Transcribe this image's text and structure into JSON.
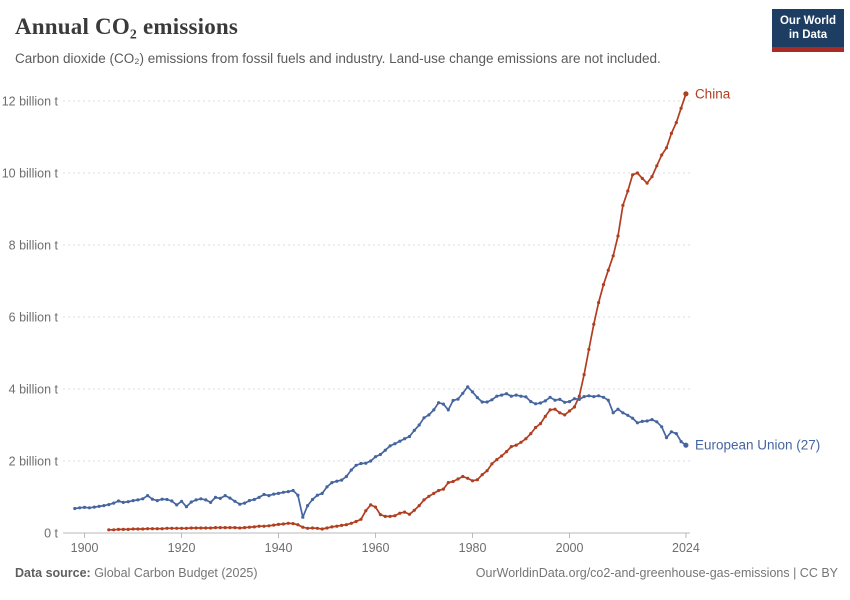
{
  "header": {
    "title": "Annual CO₂ emissions",
    "subtitle": "Carbon dioxide (CO₂) emissions from fossil fuels and industry. Land-use change emissions are not included.",
    "logo_line1": "Our World",
    "logo_line2": "in Data"
  },
  "footer": {
    "source_label": "Data source:",
    "source_value": " Global Carbon Budget (2025)",
    "link": "OurWorldinData.org/co2-and-greenhouse-gas-emissions | CC BY"
  },
  "colors": {
    "china": "#b13e20",
    "european_union": "#4665a0",
    "grid": "#dcdcdc",
    "axis": "#b8b8b8",
    "tick_text": "#6e6e6e",
    "logo_navy": "#1d3d63",
    "logo_red": "#aa2a26"
  },
  "chart_data": {
    "type": "line",
    "title": "Annual CO₂ emissions",
    "xlabel": "",
    "ylabel": "",
    "unit": "billion t",
    "grid": "horizontal-dashed",
    "legend_position": "end-of-line-labels",
    "x_domain": [
      1897,
      2025.5
    ],
    "y_domain": [
      0,
      12.4
    ],
    "x_ticks": [
      1900,
      1920,
      1940,
      1960,
      1980,
      2000,
      2024
    ],
    "y_ticks": [
      {
        "value": 0,
        "label": "0 t"
      },
      {
        "value": 2,
        "label": "2 billion t"
      },
      {
        "value": 4,
        "label": "4 billion t"
      },
      {
        "value": 6,
        "label": "6 billion t"
      },
      {
        "value": 8,
        "label": "8 billion t"
      },
      {
        "value": 10,
        "label": "10 billion t"
      },
      {
        "value": 12,
        "label": "12 billion t"
      }
    ],
    "series": [
      {
        "name": "China",
        "color": "#b13e20",
        "points": [
          [
            1905,
            0.09
          ],
          [
            1906,
            0.09
          ],
          [
            1907,
            0.1
          ],
          [
            1908,
            0.1
          ],
          [
            1909,
            0.1
          ],
          [
            1910,
            0.11
          ],
          [
            1911,
            0.11
          ],
          [
            1912,
            0.11
          ],
          [
            1913,
            0.12
          ],
          [
            1914,
            0.12
          ],
          [
            1915,
            0.12
          ],
          [
            1916,
            0.12
          ],
          [
            1917,
            0.13
          ],
          [
            1918,
            0.13
          ],
          [
            1919,
            0.13
          ],
          [
            1920,
            0.13
          ],
          [
            1921,
            0.13
          ],
          [
            1922,
            0.14
          ],
          [
            1923,
            0.14
          ],
          [
            1924,
            0.14
          ],
          [
            1925,
            0.14
          ],
          [
            1926,
            0.14
          ],
          [
            1927,
            0.15
          ],
          [
            1928,
            0.15
          ],
          [
            1929,
            0.15
          ],
          [
            1930,
            0.15
          ],
          [
            1931,
            0.15
          ],
          [
            1932,
            0.14
          ],
          [
            1933,
            0.15
          ],
          [
            1934,
            0.16
          ],
          [
            1935,
            0.17
          ],
          [
            1936,
            0.19
          ],
          [
            1937,
            0.19
          ],
          [
            1938,
            0.2
          ],
          [
            1939,
            0.22
          ],
          [
            1940,
            0.24
          ],
          [
            1941,
            0.25
          ],
          [
            1942,
            0.27
          ],
          [
            1943,
            0.26
          ],
          [
            1944,
            0.23
          ],
          [
            1945,
            0.16
          ],
          [
            1946,
            0.13
          ],
          [
            1947,
            0.14
          ],
          [
            1948,
            0.13
          ],
          [
            1949,
            0.11
          ],
          [
            1950,
            0.14
          ],
          [
            1951,
            0.17
          ],
          [
            1952,
            0.19
          ],
          [
            1953,
            0.21
          ],
          [
            1954,
            0.23
          ],
          [
            1955,
            0.27
          ],
          [
            1956,
            0.32
          ],
          [
            1957,
            0.38
          ],
          [
            1958,
            0.62
          ],
          [
            1959,
            0.78
          ],
          [
            1960,
            0.72
          ],
          [
            1961,
            0.51
          ],
          [
            1962,
            0.46
          ],
          [
            1963,
            0.46
          ],
          [
            1964,
            0.48
          ],
          [
            1965,
            0.55
          ],
          [
            1966,
            0.58
          ],
          [
            1967,
            0.52
          ],
          [
            1968,
            0.63
          ],
          [
            1969,
            0.76
          ],
          [
            1970,
            0.92
          ],
          [
            1971,
            1.02
          ],
          [
            1972,
            1.1
          ],
          [
            1973,
            1.18
          ],
          [
            1974,
            1.22
          ],
          [
            1975,
            1.4
          ],
          [
            1976,
            1.43
          ],
          [
            1977,
            1.5
          ],
          [
            1978,
            1.57
          ],
          [
            1979,
            1.52
          ],
          [
            1980,
            1.45
          ],
          [
            1981,
            1.48
          ],
          [
            1982,
            1.62
          ],
          [
            1983,
            1.73
          ],
          [
            1984,
            1.92
          ],
          [
            1985,
            2.04
          ],
          [
            1986,
            2.14
          ],
          [
            1987,
            2.26
          ],
          [
            1988,
            2.4
          ],
          [
            1989,
            2.44
          ],
          [
            1990,
            2.52
          ],
          [
            1991,
            2.62
          ],
          [
            1992,
            2.76
          ],
          [
            1993,
            2.93
          ],
          [
            1994,
            3.04
          ],
          [
            1995,
            3.24
          ],
          [
            1996,
            3.42
          ],
          [
            1997,
            3.44
          ],
          [
            1998,
            3.34
          ],
          [
            1999,
            3.28
          ],
          [
            2000,
            3.39
          ],
          [
            2001,
            3.5
          ],
          [
            2002,
            3.8
          ],
          [
            2003,
            4.4
          ],
          [
            2004,
            5.1
          ],
          [
            2005,
            5.8
          ],
          [
            2006,
            6.4
          ],
          [
            2007,
            6.9
          ],
          [
            2008,
            7.3
          ],
          [
            2009,
            7.7
          ],
          [
            2010,
            8.25
          ],
          [
            2011,
            9.1
          ],
          [
            2012,
            9.5
          ],
          [
            2013,
            9.95
          ],
          [
            2014,
            10.0
          ],
          [
            2015,
            9.85
          ],
          [
            2016,
            9.72
          ],
          [
            2017,
            9.9
          ],
          [
            2018,
            10.2
          ],
          [
            2019,
            10.5
          ],
          [
            2020,
            10.7
          ],
          [
            2021,
            11.1
          ],
          [
            2022,
            11.4
          ],
          [
            2023,
            11.8
          ],
          [
            2024,
            12.2
          ]
        ]
      },
      {
        "name": "European Union (27)",
        "color": "#4665a0",
        "points": [
          [
            1898,
            0.68
          ],
          [
            1899,
            0.7
          ],
          [
            1900,
            0.71
          ],
          [
            1901,
            0.7
          ],
          [
            1902,
            0.72
          ],
          [
            1903,
            0.74
          ],
          [
            1904,
            0.76
          ],
          [
            1905,
            0.79
          ],
          [
            1906,
            0.83
          ],
          [
            1907,
            0.89
          ],
          [
            1908,
            0.85
          ],
          [
            1909,
            0.87
          ],
          [
            1910,
            0.9
          ],
          [
            1911,
            0.92
          ],
          [
            1912,
            0.95
          ],
          [
            1913,
            1.04
          ],
          [
            1914,
            0.94
          ],
          [
            1915,
            0.9
          ],
          [
            1916,
            0.94
          ],
          [
            1917,
            0.93
          ],
          [
            1918,
            0.89
          ],
          [
            1919,
            0.78
          ],
          [
            1920,
            0.88
          ],
          [
            1921,
            0.73
          ],
          [
            1922,
            0.86
          ],
          [
            1923,
            0.92
          ],
          [
            1924,
            0.95
          ],
          [
            1925,
            0.92
          ],
          [
            1926,
            0.85
          ],
          [
            1927,
            0.99
          ],
          [
            1928,
            0.96
          ],
          [
            1929,
            1.04
          ],
          [
            1930,
            0.97
          ],
          [
            1931,
            0.88
          ],
          [
            1932,
            0.8
          ],
          [
            1933,
            0.83
          ],
          [
            1934,
            0.9
          ],
          [
            1935,
            0.93
          ],
          [
            1936,
            0.99
          ],
          [
            1937,
            1.07
          ],
          [
            1938,
            1.04
          ],
          [
            1939,
            1.08
          ],
          [
            1940,
            1.1
          ],
          [
            1941,
            1.13
          ],
          [
            1942,
            1.15
          ],
          [
            1943,
            1.18
          ],
          [
            1944,
            1.05
          ],
          [
            1945,
            0.44
          ],
          [
            1946,
            0.76
          ],
          [
            1947,
            0.93
          ],
          [
            1948,
            1.05
          ],
          [
            1949,
            1.1
          ],
          [
            1950,
            1.28
          ],
          [
            1951,
            1.4
          ],
          [
            1952,
            1.44
          ],
          [
            1953,
            1.47
          ],
          [
            1954,
            1.57
          ],
          [
            1955,
            1.75
          ],
          [
            1956,
            1.88
          ],
          [
            1957,
            1.93
          ],
          [
            1958,
            1.94
          ],
          [
            1959,
            2.0
          ],
          [
            1960,
            2.12
          ],
          [
            1961,
            2.18
          ],
          [
            1962,
            2.3
          ],
          [
            1963,
            2.42
          ],
          [
            1964,
            2.48
          ],
          [
            1965,
            2.55
          ],
          [
            1966,
            2.62
          ],
          [
            1967,
            2.68
          ],
          [
            1968,
            2.85
          ],
          [
            1969,
            3.0
          ],
          [
            1970,
            3.2
          ],
          [
            1971,
            3.28
          ],
          [
            1972,
            3.42
          ],
          [
            1973,
            3.62
          ],
          [
            1974,
            3.58
          ],
          [
            1975,
            3.42
          ],
          [
            1976,
            3.68
          ],
          [
            1977,
            3.72
          ],
          [
            1978,
            3.88
          ],
          [
            1979,
            4.06
          ],
          [
            1980,
            3.92
          ],
          [
            1981,
            3.76
          ],
          [
            1982,
            3.64
          ],
          [
            1983,
            3.64
          ],
          [
            1984,
            3.7
          ],
          [
            1985,
            3.8
          ],
          [
            1986,
            3.83
          ],
          [
            1987,
            3.87
          ],
          [
            1988,
            3.8
          ],
          [
            1989,
            3.83
          ],
          [
            1990,
            3.8
          ],
          [
            1991,
            3.78
          ],
          [
            1992,
            3.65
          ],
          [
            1993,
            3.59
          ],
          [
            1994,
            3.61
          ],
          [
            1995,
            3.67
          ],
          [
            1996,
            3.77
          ],
          [
            1997,
            3.69
          ],
          [
            1998,
            3.71
          ],
          [
            1999,
            3.63
          ],
          [
            2000,
            3.65
          ],
          [
            2001,
            3.73
          ],
          [
            2002,
            3.71
          ],
          [
            2003,
            3.79
          ],
          [
            2004,
            3.81
          ],
          [
            2005,
            3.79
          ],
          [
            2006,
            3.81
          ],
          [
            2007,
            3.77
          ],
          [
            2008,
            3.69
          ],
          [
            2009,
            3.34
          ],
          [
            2010,
            3.44
          ],
          [
            2011,
            3.34
          ],
          [
            2012,
            3.27
          ],
          [
            2013,
            3.19
          ],
          [
            2014,
            3.06
          ],
          [
            2015,
            3.1
          ],
          [
            2016,
            3.11
          ],
          [
            2017,
            3.15
          ],
          [
            2018,
            3.09
          ],
          [
            2019,
            2.95
          ],
          [
            2020,
            2.65
          ],
          [
            2021,
            2.81
          ],
          [
            2022,
            2.76
          ],
          [
            2023,
            2.54
          ],
          [
            2024,
            2.44
          ]
        ]
      }
    ]
  }
}
